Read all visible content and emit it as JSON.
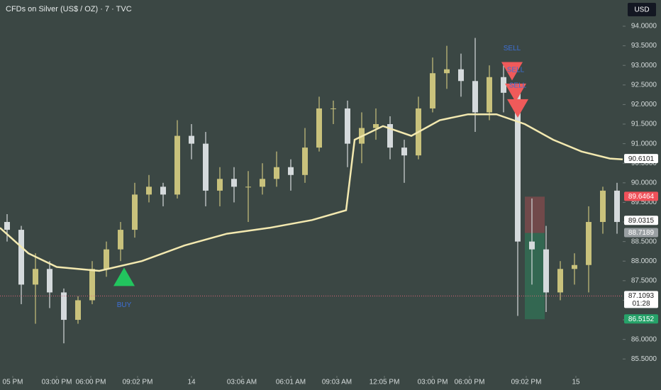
{
  "chart_data": {
    "type": "candlestick",
    "title": "CFDs on Silver (US$ / OZ) · 7 · TVC",
    "currency": "USD",
    "up_color": "#c9c27c",
    "down_color": "#d5dadc",
    "open": [
      89.0,
      88.8,
      87.4,
      87.8,
      87.2,
      86.5,
      87.0,
      87.8,
      88.3,
      88.8,
      89.7,
      89.9,
      89.7,
      91.2,
      91.0,
      89.8,
      90.1,
      89.9,
      89.9,
      90.1,
      90.4,
      90.2,
      90.9,
      91.9,
      91.9,
      91.0,
      91.4,
      91.5,
      90.9,
      90.7,
      91.9,
      92.8,
      92.9,
      92.6,
      91.8,
      92.7,
      92.3,
      88.5,
      88.3,
      87.2,
      87.8,
      87.9,
      89.0,
      89.8
    ],
    "high": [
      89.2,
      88.9,
      88.2,
      88.0,
      87.3,
      87.1,
      88.0,
      88.5,
      89.0,
      90.0,
      90.2,
      90.0,
      91.6,
      91.5,
      91.3,
      90.4,
      90.4,
      90.3,
      90.5,
      90.8,
      90.6,
      91.4,
      92.2,
      92.1,
      92.1,
      91.8,
      91.9,
      91.7,
      91.1,
      92.2,
      93.2,
      93.5,
      93.3,
      93.7,
      93.0,
      93.0,
      92.5,
      89.6,
      88.9,
      88.0,
      88.2,
      89.4,
      89.9,
      90.0
    ],
    "low": [
      88.5,
      86.9,
      86.4,
      86.8,
      85.9,
      86.4,
      86.9,
      87.6,
      88.0,
      88.6,
      89.5,
      89.4,
      89.6,
      90.6,
      89.4,
      89.4,
      89.5,
      89.0,
      89.7,
      89.9,
      89.8,
      90.0,
      90.8,
      91.5,
      90.4,
      90.5,
      91.1,
      90.6,
      90.0,
      90.6,
      91.8,
      92.4,
      92.2,
      91.3,
      91.6,
      91.8,
      86.6,
      87.4,
      86.7,
      87.0,
      87.4,
      87.2,
      88.7,
      88.7
    ],
    "close": [
      88.8,
      87.4,
      87.8,
      87.2,
      86.5,
      87.0,
      87.8,
      88.3,
      88.8,
      89.7,
      89.9,
      89.7,
      91.2,
      91.0,
      89.8,
      90.1,
      89.9,
      89.9,
      90.1,
      90.4,
      90.2,
      90.9,
      91.9,
      91.9,
      91.0,
      91.4,
      91.5,
      90.9,
      90.7,
      91.9,
      92.8,
      92.9,
      92.6,
      91.8,
      92.7,
      92.3,
      88.5,
      88.3,
      87.2,
      87.8,
      87.9,
      89.0,
      89.8,
      89.0
    ],
    "moving_average": {
      "color": "#f3e9b0",
      "x": [
        -0.5,
        1.5,
        3.5,
        6.5,
        9.5,
        12.5,
        15.5,
        18.5,
        21.5,
        23.9,
        24.5,
        26.5,
        28.5,
        30.5,
        32.5,
        34.5,
        36.5,
        38.5,
        40.5,
        42.5,
        43.4
      ],
      "values": [
        88.85,
        88.2,
        87.85,
        87.75,
        88.0,
        88.4,
        88.7,
        88.85,
        89.05,
        89.3,
        91.1,
        91.45,
        91.2,
        91.6,
        91.75,
        91.75,
        91.5,
        91.1,
        90.8,
        90.62,
        90.6
      ]
    },
    "signals": [
      {
        "label": "BUY",
        "x": 8.25,
        "value": 87.6,
        "color": "#22c55e",
        "dir": "up"
      },
      {
        "label": "SELL",
        "x": 35.6,
        "value": 92.85,
        "color": "#f05a5a",
        "dir": "down"
      },
      {
        "label": "SELL",
        "x": 35.85,
        "value": 92.3,
        "color": "#f05a5a",
        "dir": "down"
      },
      {
        "label": "SELL",
        "x": 36.0,
        "value": 91.9,
        "color": "#f05a5a",
        "dir": "down"
      }
    ],
    "price_tags": [
      {
        "value": 90.6101,
        "bg": "#ffffff",
        "fg": "#222222"
      },
      {
        "value": 89.6464,
        "bg": "#f0515a",
        "fg": "#ffffff"
      },
      {
        "value": 89.0315,
        "bg": "#ffffff",
        "fg": "#222222"
      },
      {
        "value": 88.7189,
        "bg": "#9aa0a3",
        "fg": "#ffffff"
      },
      {
        "value": 87.1093,
        "bg": "#ffffff",
        "fg": "#222222",
        "countdown": "01:28"
      },
      {
        "value": 86.5152,
        "bg": "#26a269",
        "fg": "#ffffff"
      }
    ],
    "position_x": [
      36.5,
      37.9
    ],
    "ylim": [
      85.07,
      94.67
    ],
    "yticks": [
      {
        "value": 85.5,
        "label": "85.5000"
      },
      {
        "value": 86,
        "label": "86.0000"
      },
      {
        "value": 86.5,
        "label": "86.5000"
      },
      {
        "value": 87,
        "label": "87.0000"
      },
      {
        "value": 87.5,
        "label": "87.5000"
      },
      {
        "value": 88,
        "label": "88.0000"
      },
      {
        "value": 88.5,
        "label": "88.5000"
      },
      {
        "value": 89,
        "label": "89.0000"
      },
      {
        "value": 89.5,
        "label": "89.5000"
      },
      {
        "value": 90,
        "label": "90.0000"
      },
      {
        "value": 90.5,
        "label": "90.5000"
      },
      {
        "value": 91,
        "label": "91.0000"
      },
      {
        "value": 91.5,
        "label": "91.5000"
      },
      {
        "value": 92,
        "label": "92.0000"
      },
      {
        "value": 92.5,
        "label": "92.5000"
      },
      {
        "value": 93,
        "label": "93.0000"
      },
      {
        "value": 93.5,
        "label": "93.5000"
      },
      {
        "value": 94,
        "label": "94.0000"
      }
    ],
    "xlim": [
      -0.5,
      43.4
    ],
    "xticks": [
      {
        "value": 0.4,
        "label": "05 PM"
      },
      {
        "value": 3.5,
        "label": "03:00 PM"
      },
      {
        "value": 5.9,
        "label": "06:00 PM"
      },
      {
        "value": 9.2,
        "label": "09:02 PM"
      },
      {
        "value": 13,
        "label": "14"
      },
      {
        "value": 16.55,
        "label": "03:06 AM"
      },
      {
        "value": 20,
        "label": "06:01 AM"
      },
      {
        "value": 23.25,
        "label": "09:03 AM"
      },
      {
        "value": 26.6,
        "label": "12:05 PM"
      },
      {
        "value": 30,
        "label": "03:00 PM"
      },
      {
        "value": 32.6,
        "label": "06:00 PM"
      },
      {
        "value": 36.6,
        "label": "09:02 PM"
      },
      {
        "value": 40.1,
        "label": "15"
      }
    ]
  }
}
